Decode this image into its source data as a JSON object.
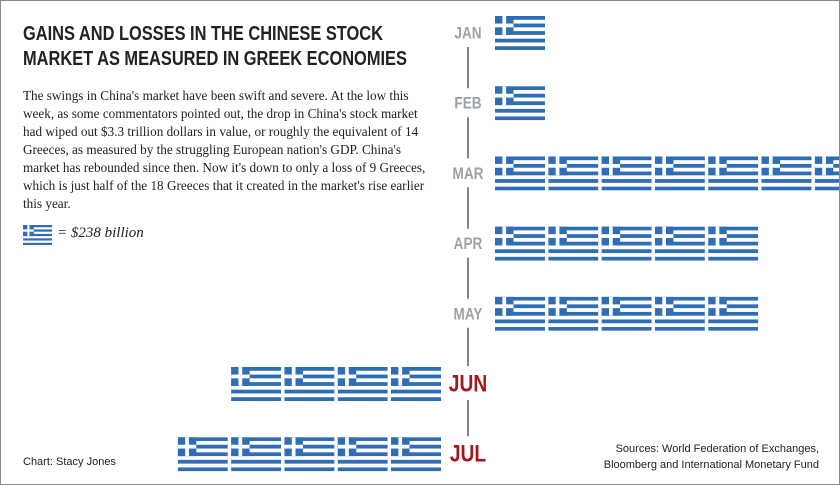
{
  "chart_data": {
    "type": "pictogram",
    "title": "GAINS AND LOSSES IN THE CHINESE STOCK MARKET AS MEASURED IN GREEK ECONOMIES",
    "subtitle": "The swings in China's market have been swift and severe. At the low this week, as some commentators pointed out, the drop in China's stock market had wiped out $3.3 trillion dollars in value, or roughly the equivalent of 14 Greeces, as measured by the struggling European nation's GDP. China's market has rebounded since then. Now it's down to only a loss of 9 Greeces, which is just half of the 18 Greeces that it created in the market's rise earlier this year.",
    "legend_text": "= $238 billion",
    "categories": [
      "JAN",
      "FEB",
      "MAR",
      "APR",
      "MAY",
      "JUN",
      "JUL"
    ],
    "values": [
      1,
      1,
      7,
      5,
      5,
      -4,
      -5
    ],
    "flag_color": "#2f6db5",
    "gain_color": "#9aa3a9",
    "loss_color": "#a3191d",
    "credit": "Chart: Stacy Jones",
    "source": [
      "Sources: World Federation of Exchanges,",
      "Bloomberg and International Monetary Fund"
    ]
  }
}
